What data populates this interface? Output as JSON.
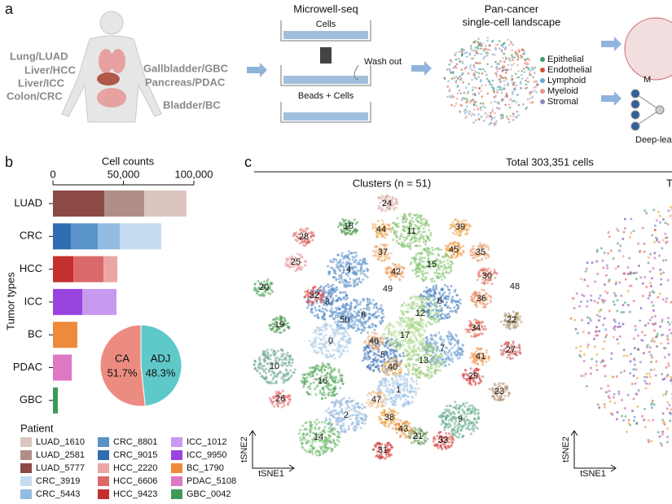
{
  "panel_a": {
    "letter": "a",
    "organs": [
      "Lung/LUAD",
      "Liver/HCC",
      "Liver/ICC",
      "Colon/CRC",
      "Gallbladder/GBC",
      "Pancreas/PDAC",
      "Bladder/BC"
    ],
    "method_title": "Microwell-seq",
    "steps": [
      "Cells",
      "Wash out",
      "Beads + Cells"
    ],
    "landscape_title": [
      "Pan-cancer",
      "single-cell landscape"
    ],
    "cell_types": [
      {
        "name": "Epithelial",
        "color": "#3a9a6a"
      },
      {
        "name": "Endothelial",
        "color": "#d2542c"
      },
      {
        "name": "Lymphoid",
        "color": "#6aa8d8"
      },
      {
        "name": "Myeloid",
        "color": "#e8968a"
      },
      {
        "name": "Stromal",
        "color": "#8a8ab8"
      }
    ],
    "cut_labels": [
      "M",
      "Deep-lea"
    ]
  },
  "panel_b": {
    "letter": "b",
    "legend_title": "Patient"
  },
  "chart_data": [
    {
      "type": "bar",
      "orientation": "horizontal",
      "stacked": true,
      "title": "Cell counts",
      "y_label": "Tumor types",
      "categories": [
        "LUAD",
        "CRC",
        "HCC",
        "ICC",
        "BC",
        "PDAC",
        "GBC"
      ],
      "xlim": [
        0,
        100000
      ],
      "xticks": [
        0,
        {
          "value": 50000,
          "label": "50,000"
        },
        {
          "value": 100000,
          "label": "100,000"
        }
      ],
      "series": [
        {
          "name": "LUAD_1610",
          "color": "#dcc5c0",
          "values": [
            30000,
            null,
            null,
            null,
            null,
            null,
            null
          ]
        },
        {
          "name": "LUAD_2581",
          "color": "#b08f88",
          "values": [
            28300,
            null,
            null,
            null,
            null,
            null,
            null
          ]
        },
        {
          "name": "LUAD_5777",
          "color": "#8b4a45",
          "values": [
            36400,
            null,
            null,
            null,
            null,
            null,
            null
          ]
        },
        {
          "name": "CRC_3919",
          "color": "#c6dcf0",
          "values": [
            null,
            29500,
            null,
            null,
            null,
            null,
            null
          ]
        },
        {
          "name": "CRC_5443",
          "color": "#93bde0",
          "values": [
            null,
            15600,
            null,
            null,
            null,
            null,
            null
          ]
        },
        {
          "name": "CRC_8801",
          "color": "#5a93c8",
          "values": [
            null,
            19100,
            null,
            null,
            null,
            null,
            null
          ]
        },
        {
          "name": "CRC_9015",
          "color": "#2f6db0",
          "values": [
            null,
            12700,
            null,
            null,
            null,
            null,
            null
          ]
        },
        {
          "name": "HCC_2220",
          "color": "#eaa6a6",
          "values": [
            null,
            null,
            9800,
            null,
            null,
            null,
            null
          ]
        },
        {
          "name": "HCC_6606",
          "color": "#da6a6a",
          "values": [
            null,
            null,
            21400,
            null,
            null,
            null,
            null
          ]
        },
        {
          "name": "HCC_9423",
          "color": "#c4302f",
          "values": [
            null,
            null,
            14500,
            null,
            null,
            null,
            null
          ]
        },
        {
          "name": "ICC_1012",
          "color": "#c79af0",
          "values": [
            null,
            null,
            null,
            24300,
            null,
            null,
            null
          ]
        },
        {
          "name": "ICC_9950",
          "color": "#9a44e0",
          "values": [
            null,
            null,
            null,
            20800,
            null,
            null,
            null
          ]
        },
        {
          "name": "BC_1790",
          "color": "#ee8a3c",
          "values": [
            null,
            null,
            null,
            null,
            17300,
            null,
            null
          ]
        },
        {
          "name": "PDAC_5108",
          "color": "#dc78c4",
          "values": [
            null,
            null,
            null,
            null,
            null,
            13300,
            null
          ]
        },
        {
          "name": "GBC_0042",
          "color": "#3f9a5a",
          "values": [
            null,
            null,
            null,
            null,
            null,
            null,
            3500
          ]
        }
      ]
    },
    {
      "type": "pie",
      "categories": [
        "CA",
        "ADJ"
      ],
      "values": [
        51.7,
        48.3
      ],
      "value_labels": [
        "51.7%",
        "48.3%"
      ],
      "colors": [
        "#ec8b80",
        "#5fc8c8"
      ]
    }
  ],
  "panel_c": {
    "letter": "c",
    "title": "Total 303,351 cells",
    "subtitle": "Clusters (n = 51)",
    "clusters": [
      "0",
      "1",
      "2",
      "3",
      "4",
      "5",
      "6",
      "7",
      "8",
      "9",
      "10",
      "11",
      "12",
      "13",
      "14",
      "15",
      "16",
      "17",
      "18",
      "19",
      "20",
      "21",
      "22",
      "23",
      "24",
      "25",
      "26",
      "27",
      "28",
      "29",
      "30",
      "31",
      "32",
      "33",
      "34",
      "35",
      "36",
      "37",
      "38",
      "39",
      "40",
      "41",
      "42",
      "43",
      "44",
      "45",
      "46",
      "47",
      "48",
      "49",
      "50"
    ],
    "x_label": "tSNE1",
    "y_label": "tSNE2",
    "cut_title": "T"
  }
}
